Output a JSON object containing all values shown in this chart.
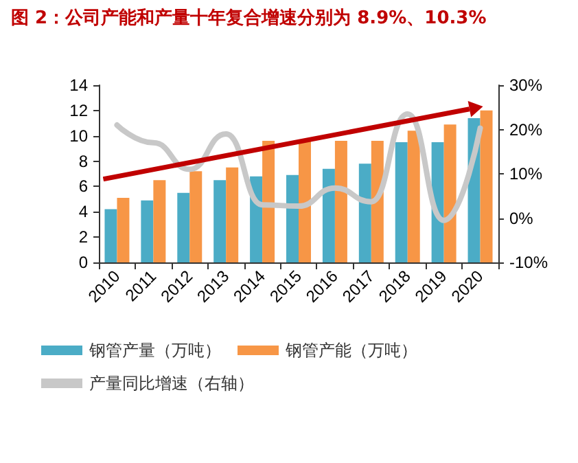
{
  "chart_data": {
    "type": "bar",
    "title": "图 2：公司产能和产量十年复合增速分别为 8.9%、10.3%",
    "categories": [
      "2010",
      "2011",
      "2012",
      "2013",
      "2014",
      "2015",
      "2016",
      "2017",
      "2018",
      "2019",
      "2020"
    ],
    "series": [
      {
        "name": "钢管产量（万吨）",
        "color": "#4bacc6",
        "values": [
          4.2,
          4.9,
          5.5,
          6.5,
          6.8,
          6.9,
          7.4,
          7.8,
          9.5,
          9.5,
          11.4
        ]
      },
      {
        "name": "钢管产能（万吨）",
        "color": "#f79646",
        "values": [
          5.1,
          6.5,
          7.2,
          7.5,
          9.6,
          9.6,
          9.6,
          9.6,
          10.4,
          10.9,
          12.0
        ]
      },
      {
        "name": "产量同比增速（右轴）",
        "type": "line",
        "axis": "y2",
        "color": "#c8c8c8",
        "values": [
          21,
          17,
          11,
          19,
          3,
          2.7,
          6.8,
          3.7,
          23.5,
          -0.5,
          20.3
        ]
      }
    ],
    "ylim": [
      0,
      14
    ],
    "yticks": [
      0,
      2,
      4,
      6,
      8,
      10,
      12,
      14
    ],
    "y2lim": [
      -10,
      30
    ],
    "y2ticks": [
      {
        "value": -10,
        "label": "-10%"
      },
      {
        "value": 0,
        "label": "0%"
      },
      {
        "value": 10,
        "label": "10%"
      },
      {
        "value": 20,
        "label": "20%"
      },
      {
        "value": 30,
        "label": "30%"
      }
    ],
    "grid": false,
    "legend": "bottom",
    "marker": "none",
    "line_style": "solid"
  }
}
